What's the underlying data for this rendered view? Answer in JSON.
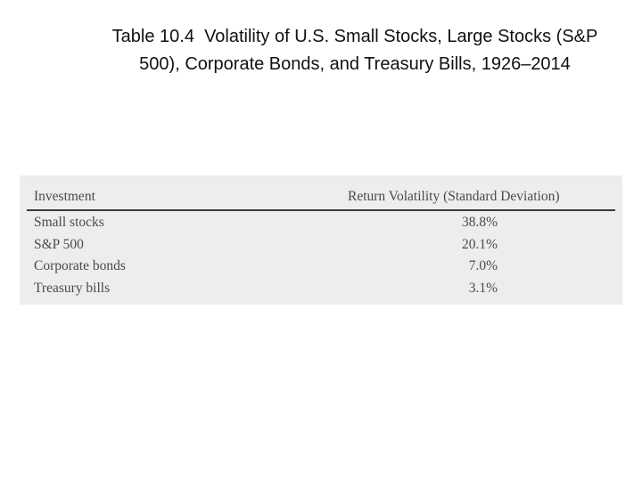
{
  "title": "Table 10.4  Volatility of U.S. Small Stocks, Large Stocks (S&P 500), Corporate Bonds, and Treasury Bills, 1926–2014",
  "table": {
    "header": [
      "Investment",
      "Return Volatility (Standard Deviation)"
    ],
    "rows": [
      [
        "Small stocks",
        "38.8%"
      ],
      [
        "S&P 500",
        "20.1%"
      ],
      [
        "Corporate bonds",
        "7.0%"
      ],
      [
        "Treasury bills",
        "3.1%"
      ]
    ]
  }
}
